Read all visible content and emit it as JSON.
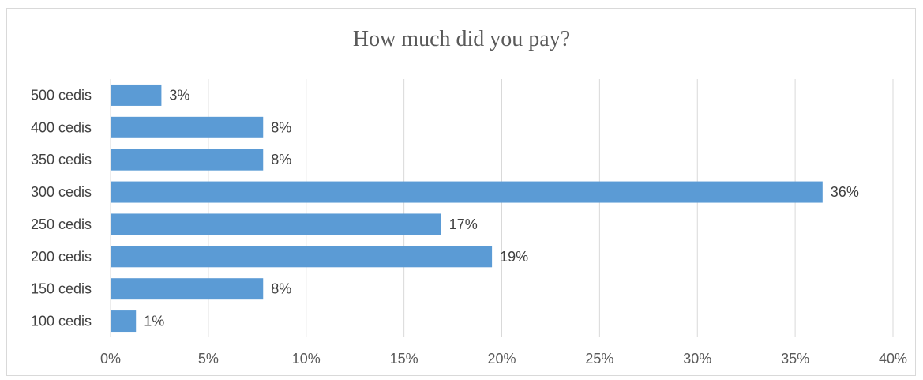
{
  "chart_data": {
    "type": "bar",
    "orientation": "horizontal",
    "title": "How much did you pay?",
    "categories": [
      "500 cedis",
      "400 cedis",
      "350 cedis",
      "300 cedis",
      "250 cedis",
      "200 cedis",
      "150 cedis",
      "100 cedis"
    ],
    "values": [
      2.6,
      7.8,
      7.8,
      36.4,
      16.9,
      19.5,
      7.8,
      1.3
    ],
    "data_labels": [
      "3%",
      "8%",
      "8%",
      "36%",
      "17%",
      "19%",
      "8%",
      "1%"
    ],
    "x_ticks": [
      "0%",
      "5%",
      "10%",
      "15%",
      "20%",
      "25%",
      "30%",
      "35%",
      "40%"
    ],
    "xlim": [
      0,
      40
    ],
    "xlabel": "",
    "ylabel": "",
    "grid": true,
    "bar_color": "#5b9bd5",
    "grid_color": "#d9d9d9"
  }
}
